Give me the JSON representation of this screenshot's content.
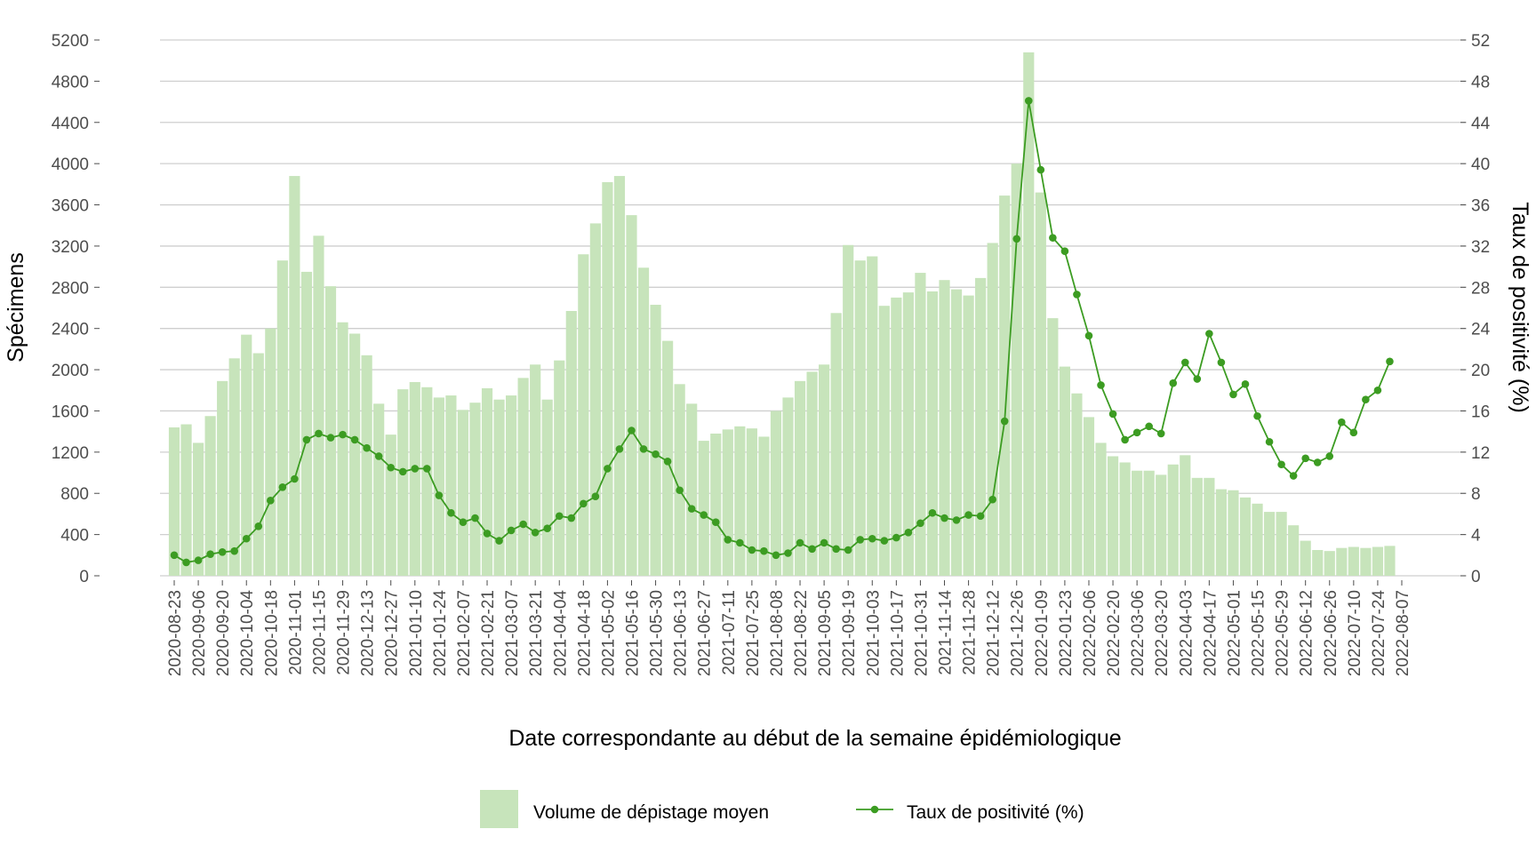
{
  "chart_data": {
    "type": "bar",
    "x_label": "Date correspondante au début de la semaine épidémiologique",
    "y_label": "Spécimens",
    "y2_label": "Taux de positivité (%)",
    "categories": [
      "2020-08-23",
      null,
      "2020-09-06",
      null,
      "2020-09-20",
      null,
      "2020-10-04",
      null,
      "2020-10-18",
      null,
      "2020-11-01",
      null,
      "2020-11-15",
      null,
      "2020-11-29",
      null,
      "2020-12-13",
      null,
      "2020-12-27",
      null,
      "2021-01-10",
      null,
      "2021-01-24",
      null,
      "2021-02-07",
      null,
      "2021-02-21",
      null,
      "2021-03-07",
      null,
      "2021-03-21",
      null,
      "2021-04-04",
      null,
      "2021-04-18",
      null,
      "2021-05-02",
      null,
      "2021-05-16",
      null,
      "2021-05-30",
      null,
      "2021-06-13",
      null,
      "2021-06-27",
      null,
      "2021-07-11",
      null,
      "2021-07-25",
      null,
      "2021-08-08",
      null,
      "2021-08-22",
      null,
      "2021-09-05",
      null,
      "2021-09-19",
      null,
      "2021-10-03",
      null,
      "2021-10-17",
      null,
      "2021-10-31",
      null,
      "2021-11-14",
      null,
      "2021-11-28",
      null,
      "2021-12-12",
      null,
      "2021-12-26",
      null,
      "2022-01-09",
      null,
      "2022-01-23",
      null,
      "2022-02-06",
      null,
      "2022-02-20",
      null,
      "2022-03-06",
      null,
      "2022-03-20",
      null,
      "2022-04-03",
      null,
      "2022-04-17",
      null,
      "2022-05-01",
      null,
      "2022-05-15",
      null,
      "2022-05-29",
      null,
      "2022-06-12",
      null,
      "2022-06-26",
      null,
      "2022-07-10",
      null,
      "2022-07-24",
      null,
      "2022-08-07"
    ],
    "series": [
      {
        "name": "Volume de dépistage moyen",
        "type": "bar",
        "color": "#c7e4bb",
        "values": [
          1440,
          1470,
          1290,
          1550,
          1890,
          2110,
          2340,
          2160,
          2400,
          3060,
          3880,
          2950,
          3300,
          2810,
          2460,
          2350,
          2140,
          1670,
          1370,
          1810,
          1880,
          1830,
          1730,
          1750,
          1610,
          1680,
          1820,
          1710,
          1750,
          1920,
          2050,
          1710,
          2090,
          2570,
          3120,
          3420,
          3820,
          3880,
          3500,
          2990,
          2630,
          2280,
          1860,
          1670,
          1310,
          1380,
          1420,
          1450,
          1430,
          1350,
          1600,
          1730,
          1890,
          1980,
          2050,
          2550,
          3210,
          3060,
          3100,
          2620,
          2700,
          2750,
          2940,
          2760,
          2870,
          2780,
          2720,
          2890,
          3230,
          3690,
          4000,
          5080,
          3720,
          2500,
          2030,
          1770,
          1540,
          1290,
          1160,
          1100,
          1020,
          1020,
          980,
          1080,
          1170,
          950,
          950,
          840,
          830,
          760,
          700,
          620,
          620,
          490,
          340,
          250,
          240,
          270,
          280,
          270,
          280,
          290,
          null
        ]
      },
      {
        "name": "Taux de positivité (%)",
        "type": "line",
        "axis": "y2",
        "color": "#3c9c22",
        "values": [
          2.0,
          1.3,
          1.5,
          2.1,
          2.3,
          2.4,
          3.6,
          4.8,
          7.3,
          8.6,
          9.4,
          13.2,
          13.8,
          13.4,
          13.7,
          13.2,
          12.4,
          11.6,
          10.5,
          10.1,
          10.4,
          10.4,
          7.8,
          6.1,
          5.2,
          5.6,
          4.1,
          3.4,
          4.4,
          5.0,
          4.2,
          4.6,
          5.8,
          5.6,
          7.0,
          7.7,
          10.4,
          12.3,
          14.1,
          12.3,
          11.8,
          11.1,
          8.3,
          6.5,
          5.9,
          5.2,
          3.5,
          3.2,
          2.5,
          2.4,
          2.0,
          2.2,
          3.2,
          2.6,
          3.2,
          2.6,
          2.5,
          3.5,
          3.6,
          3.4,
          3.7,
          4.2,
          5.1,
          6.1,
          5.6,
          5.4,
          5.9,
          5.8,
          7.4,
          15.0,
          32.7,
          46.1,
          39.4,
          32.8,
          31.5,
          27.3,
          23.3,
          18.5,
          15.7,
          13.2,
          13.9,
          14.5,
          13.8,
          18.7,
          20.7,
          19.1,
          23.5,
          20.7,
          17.6,
          18.6,
          15.5,
          13.0,
          10.8,
          9.7,
          11.4,
          11.0,
          11.6,
          14.9,
          13.9,
          17.1,
          18.0,
          20.8,
          null
        ]
      }
    ],
    "ylim": [
      0,
      5200
    ],
    "yticks": [
      0,
      400,
      800,
      1200,
      1600,
      2000,
      2400,
      2800,
      3200,
      3600,
      4000,
      4400,
      4800,
      5200
    ],
    "y2lim": [
      0,
      52
    ],
    "y2ticks": [
      0,
      4,
      8,
      12,
      16,
      20,
      24,
      28,
      32,
      36,
      40,
      44,
      48,
      52
    ],
    "grid": true,
    "legend": "bottom"
  }
}
